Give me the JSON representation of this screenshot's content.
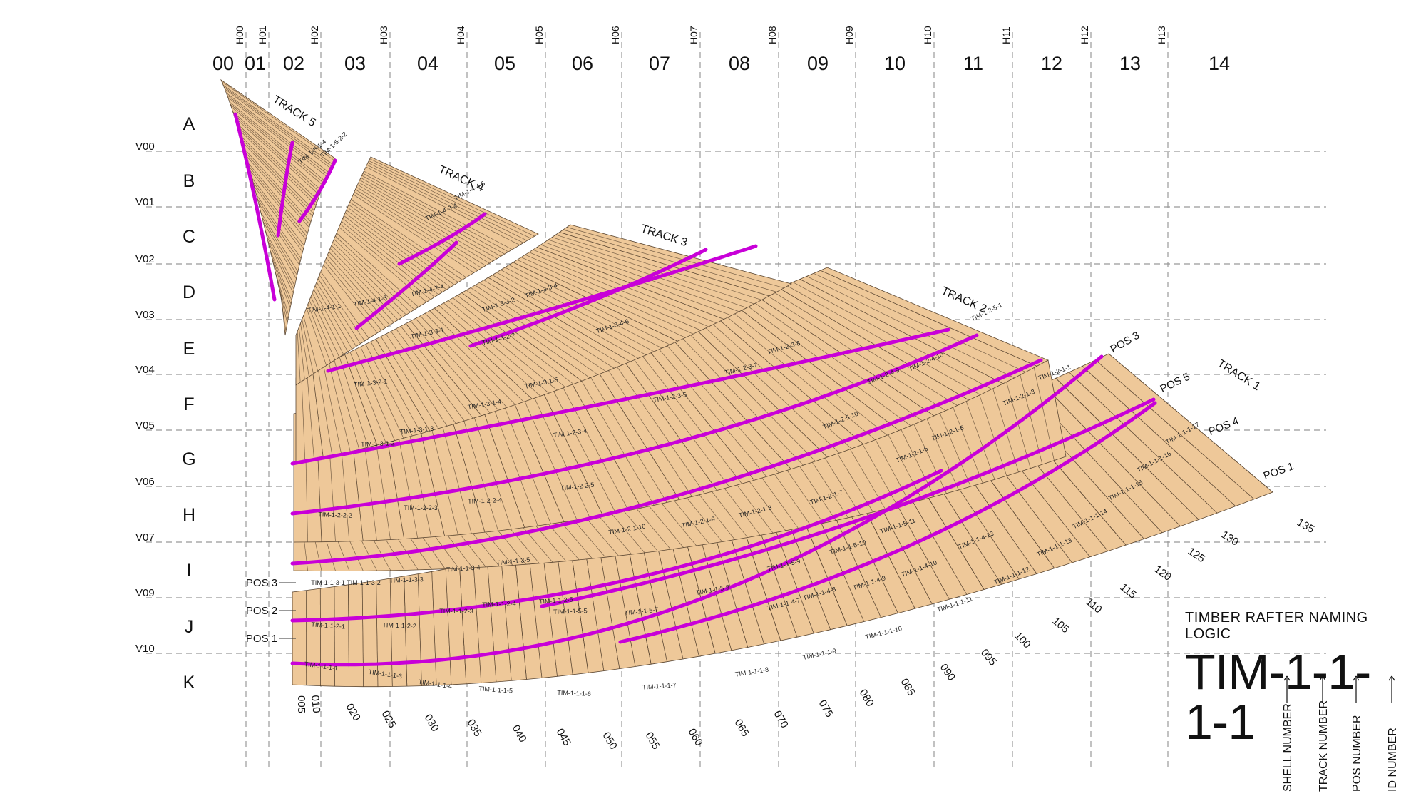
{
  "columns": [
    "00",
    "01",
    "02",
    "03",
    "04",
    "05",
    "06",
    "07",
    "08",
    "09",
    "10",
    "11",
    "12",
    "13",
    "14"
  ],
  "h_lines": [
    "H00",
    "H01",
    "H02",
    "H03",
    "H04",
    "H05",
    "H06",
    "H07",
    "H08",
    "H09",
    "H10",
    "H11",
    "H12",
    "H13"
  ],
  "rows": [
    "A",
    "B",
    "C",
    "D",
    "E",
    "F",
    "G",
    "H",
    "I",
    "J",
    "K"
  ],
  "v_lines": [
    "V00",
    "V01",
    "V02",
    "V03",
    "V04",
    "V05",
    "V06",
    "V07",
    "V09",
    "V10"
  ],
  "tracks": [
    "TRACK 1",
    "TRACK 2",
    "TRACK 3",
    "TRACK 4",
    "TRACK 5"
  ],
  "positions_right": [
    "POS 1",
    "POS 4",
    "POS 5",
    "POS 3"
  ],
  "positions_left": [
    "POS 3",
    "POS 2",
    "POS 1"
  ],
  "ids": [
    "005",
    "010",
    "020",
    "025",
    "030",
    "035",
    "040",
    "045",
    "050",
    "055",
    "060",
    "065",
    "070",
    "075",
    "080",
    "085",
    "090",
    "095",
    "100",
    "105",
    "110",
    "115",
    "120",
    "125",
    "130",
    "135"
  ],
  "rafter_labels": [
    "TIM-1-1-1-1",
    "TIM-1-1-1-3",
    "TIM-1-1-1-4",
    "TIM-1-1-1-5",
    "TIM-1-1-1-6",
    "TIM-1-1-1-7",
    "TIM-1-1-1-8",
    "TIM-1-1-1-9",
    "TIM-1-1-1-10",
    "TIM-1-1-1-11",
    "TIM-1-1-1-12",
    "TIM-1-1-1-13",
    "TIM-1-1-1-14",
    "TIM-1-1-1-15",
    "TIM-1-1-1-16",
    "TIM-1-1-1-17",
    "TIM-1-1-2-1",
    "TIM-1-1-2-2",
    "TIM-1-1-2-3",
    "TIM-1-1-2-4",
    "TIM-1-1-2-5",
    "TIM-1-1-3-1",
    "TIM-1-1-3-2",
    "TIM-1-1-3-3",
    "TIM-1-1-3-4",
    "TIM-1-1-3-5",
    "TIM-1-1-4-7",
    "TIM-1-1-4-8",
    "TIM-1-1-4-9",
    "TIM-1-1-4-10",
    "TIM-1-1-4-13",
    "TIM-1-1-5-5",
    "TIM-1-1-5-7",
    "TIM-1-1-5-8",
    "TIM-1-1-5-9",
    "TIM-1-1-5-10",
    "TIM-1-1-5-11",
    "TIM-1-2-1-1",
    "TIM-1-2-1-3",
    "TIM-1-2-1-5",
    "TIM-1-2-1-6",
    "TIM-1-2-1-7",
    "TIM-1-2-1-8",
    "TIM-1-2-1-9",
    "TIM-1-2-1-10",
    "TIM-1-2-2-2",
    "TIM-1-2-2-3",
    "TIM-1-2-2-4",
    "TIM-1-2-2-5",
    "TIM-1-2-3-4",
    "TIM-1-2-3-5",
    "TIM-1-2-3-7",
    "TIM-1-2-3-8",
    "TIM-1-2-4-9",
    "TIM-1-2-4-10",
    "TIM-1-2-5-1",
    "TIM-1-2-5-10",
    "TIM-1-3-1-2",
    "TIM-1-3-1-3",
    "TIM-1-3-1-4",
    "TIM-1-3-1-5",
    "TIM-1-3-2-1",
    "TIM-1-3-2-2",
    "TIM-1-3-3-1",
    "TIM-1-3-3-2",
    "TIM-1-3-3-4",
    "TIM-1-3-4-6",
    "TIM-1-4-1-1",
    "TIM-1-4-1-3",
    "TIM-1-4-2-4",
    "TIM-1-4-3-4",
    "TIM-1-4-4-5",
    "TIM-1-5-1-4",
    "TIM-1-5-2-2"
  ],
  "legend": {
    "title": "TIMBER RAFTER NAMING LOGIC",
    "code": "TIM-1-1-1-1",
    "parts": [
      "SHELL NUMBER",
      "TRACK NUMBER",
      "POS NUMBER",
      "ID NUMBER"
    ]
  },
  "colors": {
    "timber": "#eec899",
    "timber_line": "#5a4632",
    "rafter": "#c800d8",
    "grid": "#999999",
    "text": "#111111"
  }
}
